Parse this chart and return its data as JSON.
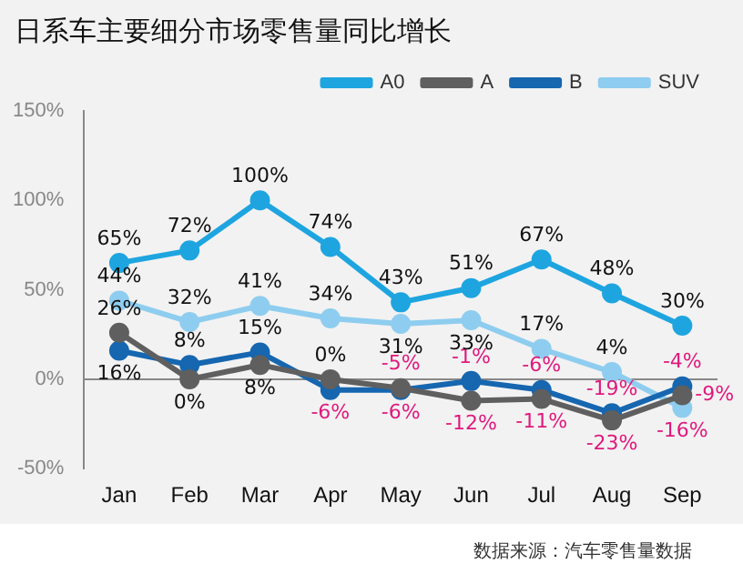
{
  "chart_data": {
    "type": "line",
    "title": "日系车主要细分市场零售量同比增长",
    "categories": [
      "Jan",
      "Feb",
      "Mar",
      "Apr",
      "May",
      "Jun",
      "Jul",
      "Aug",
      "Sep"
    ],
    "series": [
      {
        "name": "A0",
        "color": "#1ea5e0",
        "values": [
          65,
          72,
          100,
          74,
          43,
          51,
          67,
          48,
          30
        ],
        "value_labels": [
          "65%",
          "72%",
          "100%",
          "74%",
          "43%",
          "51%",
          "67%",
          "48%",
          "30%"
        ]
      },
      {
        "name": "A",
        "color": "#5f5f5f",
        "values": [
          26,
          0,
          8,
          0,
          -5,
          -12,
          -11,
          -23,
          -9
        ],
        "value_labels": [
          "26%",
          "0%",
          "8%",
          "0%",
          "-5%",
          "-12%",
          "-11%",
          "-23%",
          "-9%"
        ]
      },
      {
        "name": "B",
        "color": "#1666b0",
        "values": [
          16,
          8,
          15,
          -6,
          -6,
          -1,
          -6,
          -19,
          -4
        ],
        "value_labels": [
          "16%",
          "8%",
          "15%",
          "-6%",
          "-6%",
          "-1%",
          "-6%",
          "-19%",
          "-4%"
        ]
      },
      {
        "name": "SUV",
        "color": "#8ecdef",
        "values": [
          44,
          32,
          41,
          34,
          31,
          33,
          17,
          4,
          -16
        ],
        "value_labels": [
          "44%",
          "32%",
          "41%",
          "34%",
          "31%",
          "33%",
          "17%",
          "4%",
          "-16%"
        ]
      }
    ],
    "ylim": [
      -50,
      150
    ],
    "yticks": [
      {
        "value": -50,
        "label": "-50%"
      },
      {
        "value": 0,
        "label": "0%"
      },
      {
        "value": 50,
        "label": "50%"
      },
      {
        "value": 100,
        "label": "100%"
      },
      {
        "value": 150,
        "label": "150%"
      }
    ],
    "legend": "top right",
    "marker": "circle",
    "line_style": "solid",
    "annotations": [
      "数据来源：汽车零售量数据"
    ]
  }
}
